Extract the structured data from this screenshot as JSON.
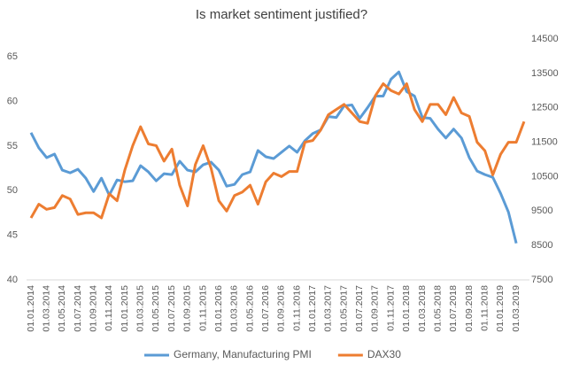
{
  "chart_data": {
    "type": "line",
    "title": "Is market sentiment justified?",
    "categories": [
      "01.01.2014",
      null,
      "01.03.2014",
      null,
      "01.05.2014",
      null,
      "01.07.2014",
      null,
      "01.09.2014",
      null,
      "01.11.2014",
      null,
      "01.01.2015",
      null,
      "01.03.2015",
      null,
      "01.05.2015",
      null,
      "01.07.2015",
      null,
      "01.09.2015",
      null,
      "01.11.2015",
      null,
      "01.01.2016",
      null,
      "01.03.2016",
      null,
      "01.05.2016",
      null,
      "01.07.2016",
      null,
      "01.09.2016",
      null,
      "01.11.2016",
      null,
      "01.01.2017",
      null,
      "01.03.2017",
      null,
      "01.05.2017",
      null,
      "01.07.2017",
      null,
      "01.09.2017",
      null,
      "01.11.2017",
      null,
      "01.01.2018",
      null,
      "01.03.2018",
      null,
      "01.05.2018",
      null,
      "01.07.2018",
      null,
      "01.09.2018",
      null,
      "01.11.2018",
      null,
      "01.01.2019",
      null,
      "01.03.2019",
      null
    ],
    "series": [
      {
        "name": "Germany, Manufacturing PMI",
        "color": "#5b9bd5",
        "values": [
          56.5,
          54.8,
          53.7,
          54.1,
          52.3,
          52.0,
          52.4,
          51.4,
          49.9,
          51.4,
          49.5,
          51.2,
          51.0,
          51.1,
          52.8,
          52.1,
          51.1,
          51.9,
          51.8,
          53.3,
          52.3,
          52.1,
          52.9,
          53.2,
          52.3,
          50.5,
          50.7,
          51.8,
          52.1,
          54.5,
          53.8,
          53.6,
          54.3,
          55.0,
          54.3,
          55.6,
          56.4,
          56.8,
          58.3,
          58.2,
          59.5,
          59.6,
          58.1,
          59.3,
          60.6,
          60.6,
          62.5,
          63.3,
          61.1,
          60.6,
          58.2,
          58.1,
          56.9,
          55.9,
          56.9,
          55.9,
          53.7,
          52.2,
          51.8,
          51.5,
          49.7,
          47.6,
          44.1,
          null
        ]
      },
      {
        "name": "DAX30",
        "color": "#ed7d31",
        "axis": "y2",
        "values": [
          9300,
          9700,
          9550,
          9600,
          9950,
          9850,
          9400,
          9450,
          9450,
          9300,
          10000,
          9800,
          10700,
          11400,
          11950,
          11450,
          11400,
          10950,
          11300,
          10250,
          9650,
          10850,
          11400,
          10750,
          9800,
          9500,
          9950,
          10050,
          10250,
          9700,
          10350,
          10600,
          10500,
          10650,
          10650,
          11500,
          11550,
          11850,
          12300,
          12450,
          12600,
          12350,
          12100,
          12050,
          12850,
          13200,
          13000,
          12900,
          13200,
          12450,
          12100,
          12600,
          12600,
          12300,
          12800,
          12350,
          12250,
          11500,
          11250,
          10550,
          11150,
          11500,
          11500,
          12100
        ]
      }
    ],
    "ylim": [
      40,
      67
    ],
    "yticks": [
      40,
      45,
      50,
      55,
      60,
      65
    ],
    "y2lim": [
      7500,
      14500
    ],
    "y2ticks": [
      7500,
      8500,
      9500,
      10500,
      11500,
      12500,
      13500,
      14500
    ],
    "legend": "bottom"
  }
}
